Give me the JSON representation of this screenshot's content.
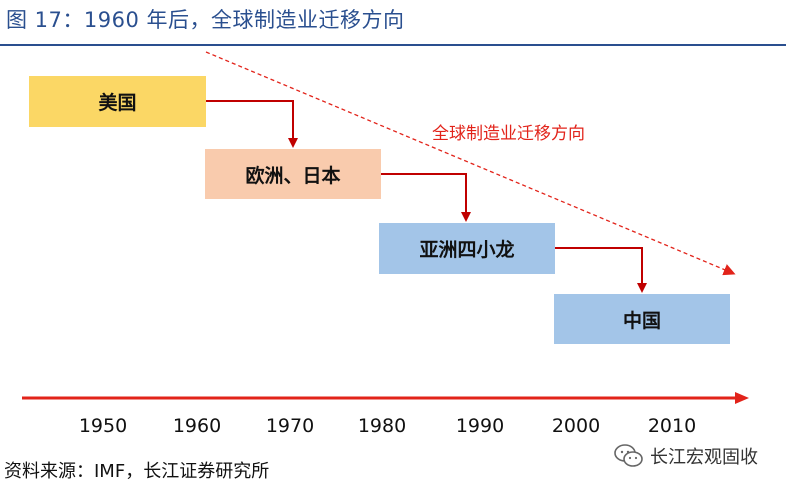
{
  "title": "图 17：1960 年后，全球制造业迁移方向",
  "boxes": {
    "us": "美国",
    "eu_japan": "欧洲、日本",
    "asia_tigers": "亚洲四小龙",
    "china": "中国"
  },
  "diagonal_label": "全球制造业迁移方向",
  "timeline": {
    "years": [
      "1950",
      "1960",
      "1970",
      "1980",
      "1990",
      "2000",
      "2010"
    ]
  },
  "source": "资料来源：IMF，长江证券研究所",
  "watermark": {
    "icon": "wechat-icon",
    "text": "长江宏观固收"
  },
  "colors": {
    "title": "#2a4f8f",
    "arrow": "#c00000",
    "diagonal": "#e2231a",
    "us": "#fbd765",
    "eu_japan": "#f9cbad",
    "asia": "#a3c5e8",
    "china": "#a3c5e8"
  }
}
